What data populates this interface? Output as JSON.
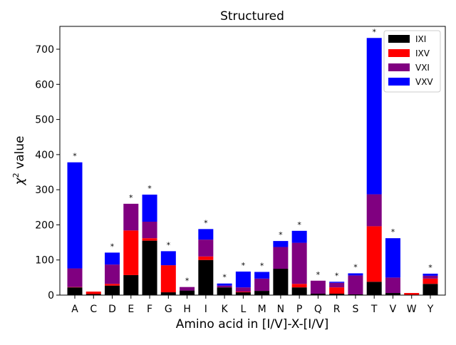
{
  "chart_data": {
    "type": "bar",
    "stacked": true,
    "title": "Structured",
    "xlabel": "Amino acid in [I/V]-X-[I/V]",
    "ylabel_prefix": "χ",
    "ylabel_sup": "2",
    "ylabel_suffix": " value",
    "ylim": [
      0,
      765
    ],
    "yticks": [
      0,
      100,
      200,
      300,
      400,
      500,
      600,
      700
    ],
    "grid": false,
    "legend_position": "top-right",
    "categories": [
      "A",
      "C",
      "D",
      "E",
      "F",
      "G",
      "H",
      "I",
      "K",
      "L",
      "M",
      "N",
      "P",
      "Q",
      "R",
      "S",
      "T",
      "V",
      "W",
      "Y"
    ],
    "series": [
      {
        "name": "IXI",
        "color": "#000000",
        "values": [
          22,
          3,
          27,
          57,
          155,
          8,
          13,
          100,
          22,
          8,
          12,
          75,
          22,
          4,
          4,
          2,
          38,
          6,
          1,
          32
        ]
      },
      {
        "name": "IXV",
        "color": "#ff0000",
        "values": [
          1,
          7,
          5,
          127,
          7,
          77,
          0,
          10,
          0,
          2,
          0,
          0,
          10,
          0,
          18,
          0,
          158,
          0,
          5,
          15
        ]
      },
      {
        "name": "VXI",
        "color": "#800080",
        "values": [
          53,
          0,
          55,
          76,
          47,
          0,
          10,
          48,
          5,
          12,
          35,
          62,
          117,
          37,
          13,
          54,
          91,
          44,
          0,
          8
        ]
      },
      {
        "name": "VXV",
        "color": "#0000ff",
        "values": [
          302,
          0,
          34,
          0,
          77,
          40,
          0,
          30,
          6,
          45,
          19,
          17,
          34,
          0,
          3,
          6,
          445,
          112,
          0,
          6
        ]
      }
    ],
    "significance_marker": "*",
    "significant": [
      "A",
      "D",
      "E",
      "F",
      "G",
      "H",
      "I",
      "K",
      "L",
      "M",
      "N",
      "P",
      "Q",
      "R",
      "S",
      "T",
      "V",
      "Y"
    ]
  }
}
